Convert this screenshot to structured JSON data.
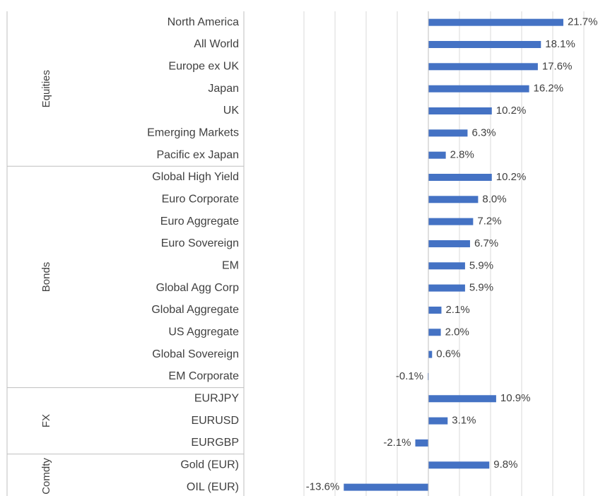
{
  "chart_data": {
    "type": "bar",
    "orientation": "horizontal",
    "color": "#4472c4",
    "xlim": [
      -20,
      25
    ],
    "xticks": [
      -20,
      -15,
      -10,
      -5,
      0,
      5,
      10,
      15,
      20,
      25
    ],
    "grid": true,
    "groups": [
      {
        "name": "Equities",
        "categories": [
          "North America",
          "All World",
          "Europe ex UK",
          "Japan",
          "UK",
          "Emerging Markets",
          "Pacific ex Japan"
        ],
        "values": [
          21.7,
          18.1,
          17.6,
          16.2,
          10.2,
          6.3,
          2.8
        ],
        "value_labels": [
          "21.7%",
          "18.1%",
          "17.6%",
          "16.2%",
          "10.2%",
          "6.3%",
          "2.8%"
        ]
      },
      {
        "name": "Bonds",
        "categories": [
          "Global High Yield",
          "Euro Corporate",
          "Euro Aggregate",
          "Euro Sovereign",
          "EM",
          "Global Agg Corp",
          "Global Aggregate",
          "US Aggregate",
          "Global Sovereign",
          "EM Corporate"
        ],
        "values": [
          10.2,
          8.0,
          7.2,
          6.7,
          5.9,
          5.9,
          2.1,
          2.0,
          0.6,
          -0.1
        ],
        "value_labels": [
          "10.2%",
          "8.0%",
          "7.2%",
          "6.7%",
          "5.9%",
          "5.9%",
          "2.1%",
          "2.0%",
          "0.6%",
          "-0.1%"
        ]
      },
      {
        "name": "FX",
        "categories": [
          "EURJPY",
          "EURUSD",
          "EURGBP"
        ],
        "values": [
          10.9,
          3.1,
          -2.1
        ],
        "value_labels": [
          "10.9%",
          "3.1%",
          "-2.1%"
        ]
      },
      {
        "name": "Comdty",
        "categories": [
          "Gold (EUR)",
          "OIL (EUR)"
        ],
        "values": [
          9.8,
          -13.6
        ],
        "value_labels": [
          "9.8%",
          "-13.6%"
        ]
      }
    ]
  }
}
